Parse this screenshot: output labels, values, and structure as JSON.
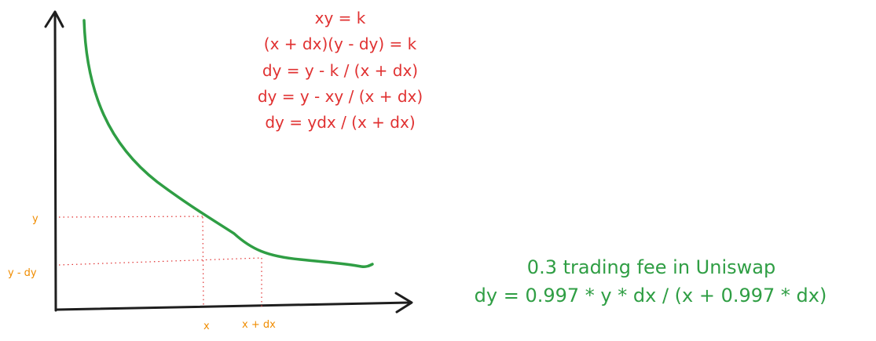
{
  "equations": [
    "xy = k",
    "(x + dx)(y - dy) = k",
    "dy = y - k / (x + dx)",
    "dy = y - xy / (x + dx)",
    "dy = ydx / (x + dx)"
  ],
  "fee_note": {
    "title": "0.3 trading fee in Uniswap",
    "formula": "dy = 0.997 * y * dx / (x + 0.997 * dx)"
  },
  "axis_labels": {
    "y": "y",
    "y_minus_dy": "y - dy",
    "x": "x",
    "x_plus_dx": "x + dx"
  },
  "colors": {
    "axes": "#1e1e1e",
    "curve": "#2f9e44",
    "equations": "#e03131",
    "labels": "#f08c00",
    "note": "#2f9e44"
  }
}
